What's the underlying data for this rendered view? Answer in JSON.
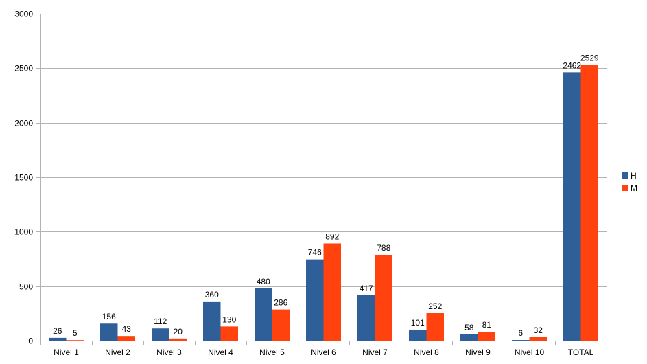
{
  "chart_data": {
    "type": "bar",
    "title": "",
    "xlabel": "",
    "ylabel": "",
    "categories": [
      "Nivel 1",
      "Nivel 2",
      "Nivel 3",
      "Nivel 4",
      "Nivel 5",
      "Nivel 6",
      "Nivel 7",
      "Nivel 8",
      "Nivel 9",
      "Nivel 10",
      "TOTAL"
    ],
    "series": [
      {
        "name": "H",
        "color": "#2E5F98",
        "values": [
          26,
          156,
          112,
          360,
          480,
          746,
          417,
          101,
          58,
          6,
          2462
        ]
      },
      {
        "name": "M",
        "color": "#FF420E",
        "values": [
          5,
          43,
          20,
          130,
          286,
          892,
          788,
          252,
          81,
          32,
          2529
        ]
      }
    ],
    "ylim": [
      0,
      3000
    ],
    "yticks": [
      0,
      500,
      1000,
      1500,
      2000,
      2500,
      3000
    ],
    "grid": true,
    "legend": "right",
    "data_labels": true
  }
}
